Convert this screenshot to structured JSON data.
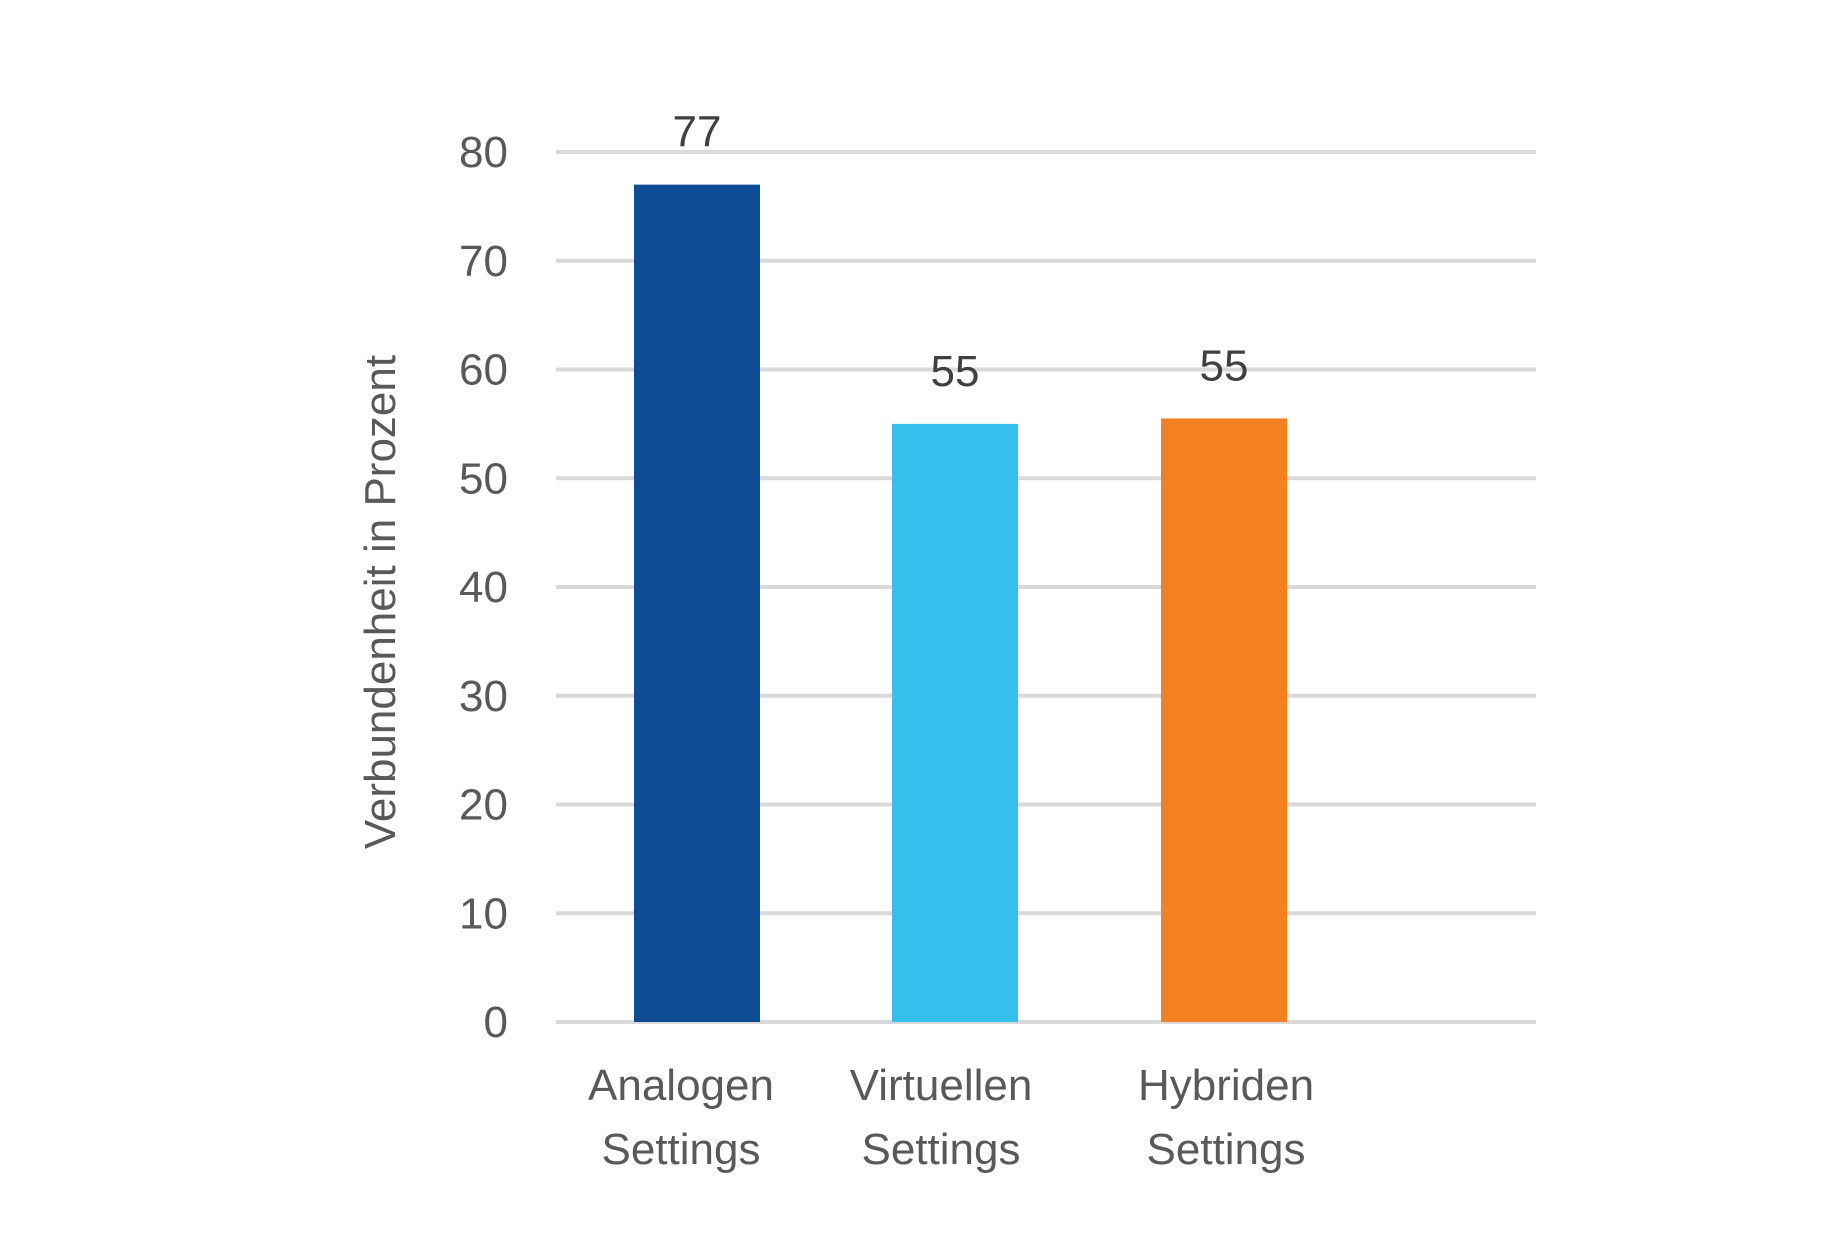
{
  "chart_data": {
    "type": "bar",
    "title": "",
    "xlabel": "",
    "ylabel": "Verbundenheit in Prozent",
    "ylim": [
      0,
      80
    ],
    "y_ticks": [
      0,
      10,
      20,
      30,
      40,
      50,
      60,
      70,
      80
    ],
    "grid": true,
    "legend": "none",
    "categories": [
      [
        "Analogen",
        "Settings"
      ],
      [
        "Virtuellen",
        "Settings"
      ],
      [
        "Hybriden",
        "Settings"
      ]
    ],
    "values": [
      77,
      55,
      55.5
    ],
    "data_labels": [
      "77",
      "55",
      "55"
    ],
    "colors": [
      "#0E4C96",
      "#35BFEC",
      "#F38021"
    ],
    "gridline_color": "#D9D9D9"
  }
}
